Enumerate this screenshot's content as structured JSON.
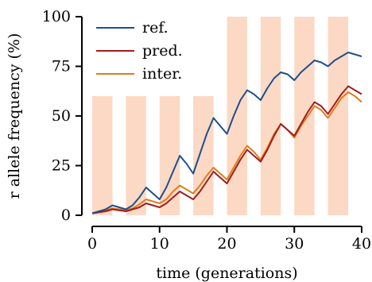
{
  "chart_data": {
    "type": "line",
    "xlabel": "time (generations)",
    "ylabel": "r allele frequency (%)",
    "xlim": [
      0,
      40
    ],
    "ylim": [
      0,
      100
    ],
    "xticks": [
      "0",
      "10",
      "20",
      "30",
      "40"
    ],
    "yticks": [
      "0",
      "25",
      "50",
      "75",
      "100"
    ],
    "grid": false,
    "legend_position": "top-left",
    "shaded_periods": [
      {
        "start": 0,
        "end": 3,
        "height": 60
      },
      {
        "start": 5,
        "end": 8,
        "height": 60
      },
      {
        "start": 10,
        "end": 13,
        "height": 60
      },
      {
        "start": 15,
        "end": 18,
        "height": 60
      },
      {
        "start": 20,
        "end": 23,
        "height": 100
      },
      {
        "start": 25,
        "end": 28,
        "height": 100
      },
      {
        "start": 30,
        "end": 33,
        "height": 100
      },
      {
        "start": 35,
        "end": 38,
        "height": 100
      }
    ],
    "shade_color": "#fcd9c4",
    "series": [
      {
        "name": "ref.",
        "color": "#1f4e8c",
        "x": [
          0,
          1,
          2,
          3,
          4,
          5,
          6,
          7,
          8,
          9,
          10,
          11,
          12,
          13,
          14,
          15,
          16,
          17,
          18,
          19,
          20,
          21,
          22,
          23,
          24,
          25,
          26,
          27,
          28,
          29,
          30,
          31,
          32,
          33,
          34,
          35,
          36,
          37,
          38,
          39,
          40
        ],
        "values": [
          1,
          2,
          3,
          5,
          4,
          3,
          5,
          9,
          14,
          11,
          8,
          14,
          22,
          30,
          26,
          21,
          31,
          41,
          49,
          45,
          41,
          50,
          58,
          63,
          61,
          58,
          64,
          69,
          72,
          71,
          68,
          72,
          75,
          78,
          77,
          75,
          78,
          80,
          82,
          81,
          80
        ]
      },
      {
        "name": "pred.",
        "color": "#a01c1c",
        "x": [
          0,
          1,
          2,
          3,
          4,
          5,
          6,
          7,
          8,
          9,
          10,
          11,
          12,
          13,
          14,
          15,
          16,
          17,
          18,
          19,
          20,
          21,
          22,
          23,
          24,
          25,
          26,
          27,
          28,
          29,
          30,
          31,
          32,
          33,
          34,
          35,
          36,
          37,
          38,
          39,
          40
        ],
        "values": [
          1,
          1.5,
          2,
          3,
          2.5,
          2,
          3,
          4,
          6,
          5,
          4,
          6,
          9,
          12,
          10,
          8,
          12,
          17,
          22,
          19,
          16,
          22,
          28,
          33,
          30,
          27,
          33,
          40,
          46,
          43,
          40,
          46,
          52,
          57,
          55,
          51,
          56,
          61,
          65,
          63,
          61
        ]
      },
      {
        "name": "inter.",
        "color": "#e07b1e",
        "x": [
          0,
          1,
          2,
          3,
          4,
          5,
          6,
          7,
          8,
          9,
          10,
          11,
          12,
          13,
          14,
          15,
          16,
          17,
          18,
          19,
          20,
          21,
          22,
          23,
          24,
          25,
          26,
          27,
          28,
          29,
          30,
          31,
          32,
          33,
          34,
          35,
          36,
          37,
          38,
          39,
          40
        ],
        "values": [
          1,
          1.5,
          2.5,
          3.5,
          3,
          2.5,
          3.5,
          5.5,
          8,
          7,
          6,
          8,
          12,
          15,
          13,
          11,
          15,
          20,
          24,
          21,
          18,
          24,
          30,
          35,
          32,
          28,
          34,
          41,
          46,
          43,
          39,
          45,
          50,
          55,
          53,
          49,
          54,
          59,
          62,
          60,
          57
        ]
      }
    ]
  }
}
